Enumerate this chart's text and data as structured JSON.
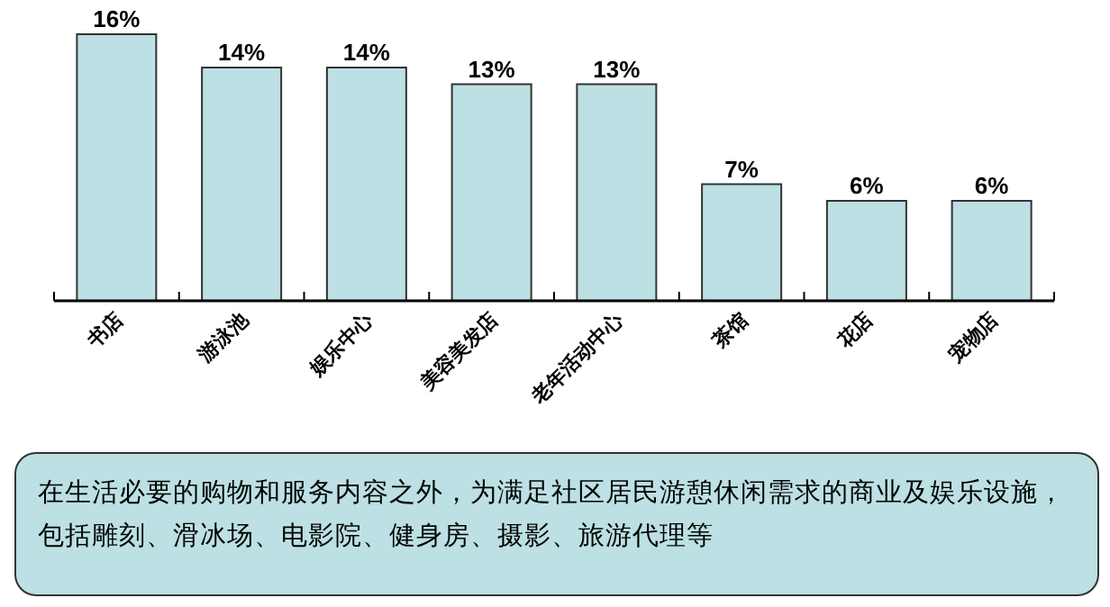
{
  "chart_data": {
    "type": "bar",
    "categories": [
      "书店",
      "游泳池",
      "娱乐中心",
      "美容美发店",
      "老年活动中心",
      "茶馆",
      "花店",
      "宠物店"
    ],
    "values": [
      16,
      14,
      14,
      13,
      13,
      7,
      6,
      6
    ],
    "value_labels": [
      "16%",
      "14%",
      "14%",
      "13%",
      "13%",
      "7%",
      "6%",
      "6%"
    ],
    "color": "#bce0e3",
    "annotations": [
      "在生活必要的购物和服务内容之外，为满足社区居民游憩休闲需求的商业及娱乐设施，包括雕刻、滑冰场、电影院、健身房、摄影、旅游代理等"
    ]
  }
}
